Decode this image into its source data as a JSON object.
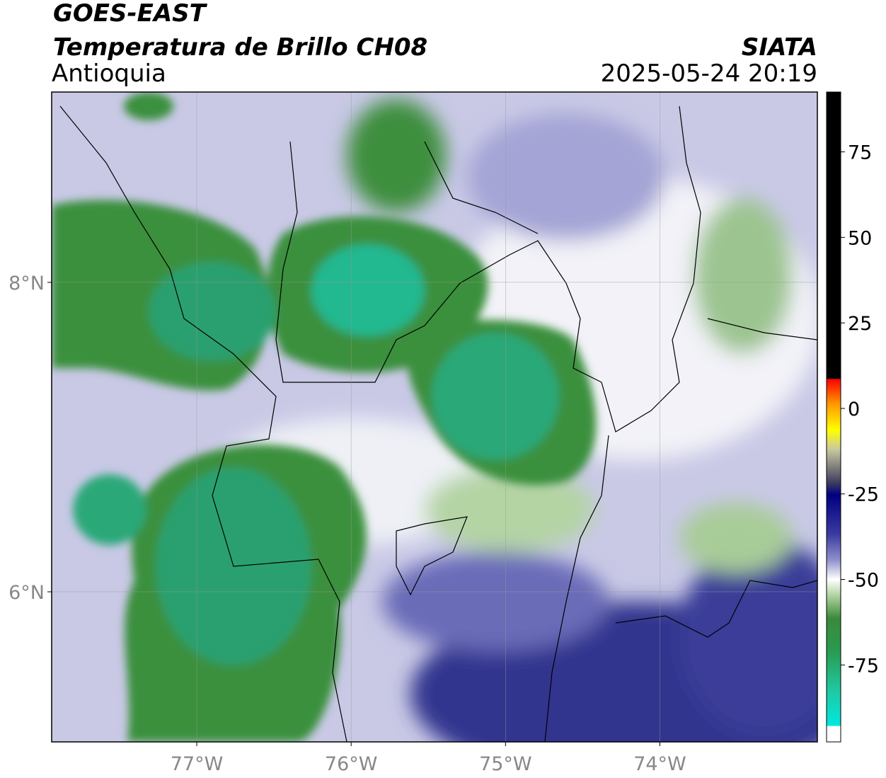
{
  "header": {
    "title": "GOES-EAST",
    "subtitle": "Temperatura de Brillo CH08",
    "region": "Antioquia",
    "source": "SIATA",
    "datetime": "2025-05-24 20:19"
  },
  "map": {
    "xlim": [
      -77.94,
      -72.98
    ],
    "ylim": [
      5.03,
      9.23
    ],
    "xticks": [
      {
        "value": -77,
        "label": "77°W"
      },
      {
        "value": -76,
        "label": "76°W"
      },
      {
        "value": -75,
        "label": "75°W"
      },
      {
        "value": -74,
        "label": "74°W"
      }
    ],
    "yticks": [
      {
        "value": 8,
        "label": "8°N"
      },
      {
        "value": 6,
        "label": "6°N"
      }
    ],
    "grid": true
  },
  "colorbar": {
    "lim": [
      -97.5,
      92.5
    ],
    "ticks": [
      75,
      50,
      25,
      0,
      -25,
      -50,
      -75
    ]
  }
}
